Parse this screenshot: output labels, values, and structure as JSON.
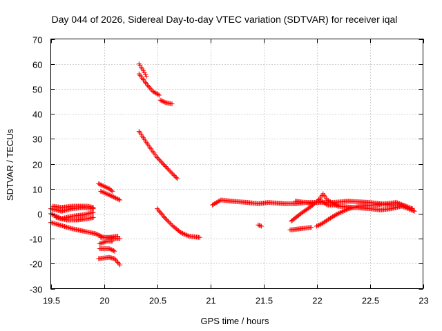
{
  "chart_data": {
    "type": "scatter",
    "title": "Day 044 of 2026, Sidereal Day-to-day VTEC variation (SDTVAR) for receiver iqal",
    "xlabel": "GPS time / hours",
    "ylabel": "SDTVAR / TECUs",
    "xlim": [
      19.5,
      23
    ],
    "ylim": [
      -30,
      70
    ],
    "xticks": [
      19.5,
      20,
      20.5,
      21,
      21.5,
      22,
      22.5,
      23
    ],
    "xtick_labels": [
      "19.5",
      "20",
      "20.5",
      "21",
      "21.5",
      "22",
      "22.5",
      "23"
    ],
    "yticks": [
      -30,
      -20,
      -10,
      0,
      10,
      20,
      30,
      40,
      50,
      60,
      70
    ],
    "ytick_labels": [
      "-30",
      "-20",
      "-10",
      "0",
      "10",
      "20",
      "30",
      "40",
      "50",
      "60",
      "70"
    ],
    "grid": true,
    "marker": "+",
    "marker_color": "#ff0000",
    "series": [
      {
        "name": "s1",
        "segments": [
          [
            [
              19.5,
              -3.5
            ],
            [
              19.7,
              -6
            ],
            [
              19.92,
              -8
            ],
            [
              20.0,
              -9.5
            ],
            [
              20.15,
              -10
            ]
          ]
        ]
      },
      {
        "name": "s2",
        "segments": [
          [
            [
              19.5,
              2
            ],
            [
              19.6,
              1
            ],
            [
              19.7,
              2
            ],
            [
              19.8,
              2.5
            ],
            [
              19.9,
              2
            ]
          ],
          [
            [
              19.5,
              0
            ],
            [
              19.6,
              -2
            ],
            [
              19.7,
              -1
            ],
            [
              19.8,
              -0.5
            ],
            [
              19.9,
              0.5
            ]
          ],
          [
            [
              19.52,
              3
            ],
            [
              19.6,
              2.5
            ],
            [
              19.7,
              3
            ],
            [
              19.85,
              3
            ],
            [
              19.9,
              2.5
            ]
          ],
          [
            [
              19.55,
              -1.5
            ],
            [
              19.65,
              -2.5
            ],
            [
              19.75,
              -2.5
            ],
            [
              19.85,
              -2
            ],
            [
              19.9,
              -1.5
            ]
          ]
        ]
      },
      {
        "name": "s3",
        "segments": [
          [
            [
              19.95,
              12
            ],
            [
              20.05,
              10
            ],
            [
              20.08,
              9
            ]
          ],
          [
            [
              19.97,
              9
            ],
            [
              20.05,
              7.5
            ],
            [
              20.15,
              5.5
            ]
          ]
        ]
      },
      {
        "name": "s4",
        "segments": [
          [
            [
              19.96,
              -12
            ],
            [
              20.03,
              -11
            ],
            [
              20.08,
              -11
            ]
          ],
          [
            [
              19.97,
              -9.5
            ],
            [
              20.05,
              -9.5
            ],
            [
              20.13,
              -9
            ]
          ],
          [
            [
              19.96,
              -14
            ],
            [
              20.05,
              -14
            ],
            [
              20.1,
              -15
            ]
          ],
          [
            [
              19.95,
              -18
            ],
            [
              20.05,
              -17.5
            ],
            [
              20.1,
              -18
            ],
            [
              20.15,
              -20.5
            ]
          ]
        ]
      },
      {
        "name": "s5",
        "segments": [
          [
            [
              20.33,
              60
            ],
            [
              20.36,
              58
            ],
            [
              20.4,
              55
            ]
          ],
          [
            [
              20.33,
              56
            ],
            [
              20.4,
              52
            ],
            [
              20.46,
              49
            ],
            [
              20.52,
              47.5
            ]
          ],
          [
            [
              20.53,
              45.5
            ],
            [
              20.58,
              44.5
            ],
            [
              20.64,
              44
            ]
          ]
        ]
      },
      {
        "name": "s6",
        "segments": [
          [
            [
              20.33,
              33
            ],
            [
              20.4,
              28.5
            ],
            [
              20.5,
              22.5
            ],
            [
              20.6,
              18
            ],
            [
              20.69,
              14
            ]
          ]
        ]
      },
      {
        "name": "s7",
        "segments": [
          [
            [
              20.5,
              2
            ],
            [
              20.58,
              -2
            ],
            [
              20.65,
              -5
            ],
            [
              20.72,
              -7.5
            ],
            [
              20.8,
              -9
            ],
            [
              20.9,
              -9.5
            ]
          ]
        ]
      },
      {
        "name": "s8",
        "segments": [
          [
            [
              21.02,
              3.5
            ],
            [
              21.1,
              5.5
            ],
            [
              21.2,
              5
            ],
            [
              21.35,
              4.5
            ],
            [
              21.45,
              4
            ],
            [
              21.55,
              4.5
            ],
            [
              21.7,
              4
            ],
            [
              21.8,
              4
            ],
            [
              21.9,
              4.5
            ],
            [
              22.0,
              4.5
            ],
            [
              22.15,
              4.5
            ],
            [
              22.3,
              5
            ],
            [
              22.5,
              4.5
            ],
            [
              22.6,
              4
            ],
            [
              22.7,
              3.5
            ],
            [
              22.8,
              3.5
            ],
            [
              22.9,
              2
            ]
          ]
        ]
      },
      {
        "name": "s9",
        "segments": [
          [
            [
              21.45,
              -4.5
            ],
            [
              21.48,
              -5
            ]
          ],
          [
            [
              21.75,
              -6.5
            ],
            [
              21.85,
              -6
            ],
            [
              21.95,
              -5.5
            ]
          ]
        ]
      },
      {
        "name": "s10",
        "segments": [
          [
            [
              21.76,
              -3
            ],
            [
              21.85,
              0
            ],
            [
              21.95,
              3
            ],
            [
              22.03,
              6
            ],
            [
              22.06,
              8
            ],
            [
              22.1,
              5.5
            ],
            [
              22.2,
              3
            ],
            [
              22.35,
              2.5
            ],
            [
              22.5,
              2
            ],
            [
              22.6,
              1.5
            ],
            [
              22.7,
              2
            ],
            [
              22.8,
              3
            ],
            [
              22.92,
              1
            ]
          ]
        ]
      },
      {
        "name": "s11",
        "segments": [
          [
            [
              22.0,
              -5
            ],
            [
              22.05,
              -4
            ],
            [
              22.12,
              -2
            ],
            [
              22.2,
              0
            ],
            [
              22.3,
              2
            ],
            [
              22.4,
              3
            ],
            [
              22.55,
              3.5
            ],
            [
              22.75,
              4.5
            ],
            [
              22.9,
              2
            ]
          ]
        ]
      },
      {
        "name": "s12",
        "segments": [
          [
            [
              21.8,
              5
            ],
            [
              21.9,
              4.5
            ],
            [
              21.95,
              4
            ],
            [
              22.0,
              4.5
            ],
            [
              22.05,
              5
            ],
            [
              22.1,
              3.5
            ],
            [
              22.2,
              3.5
            ]
          ]
        ]
      }
    ]
  }
}
